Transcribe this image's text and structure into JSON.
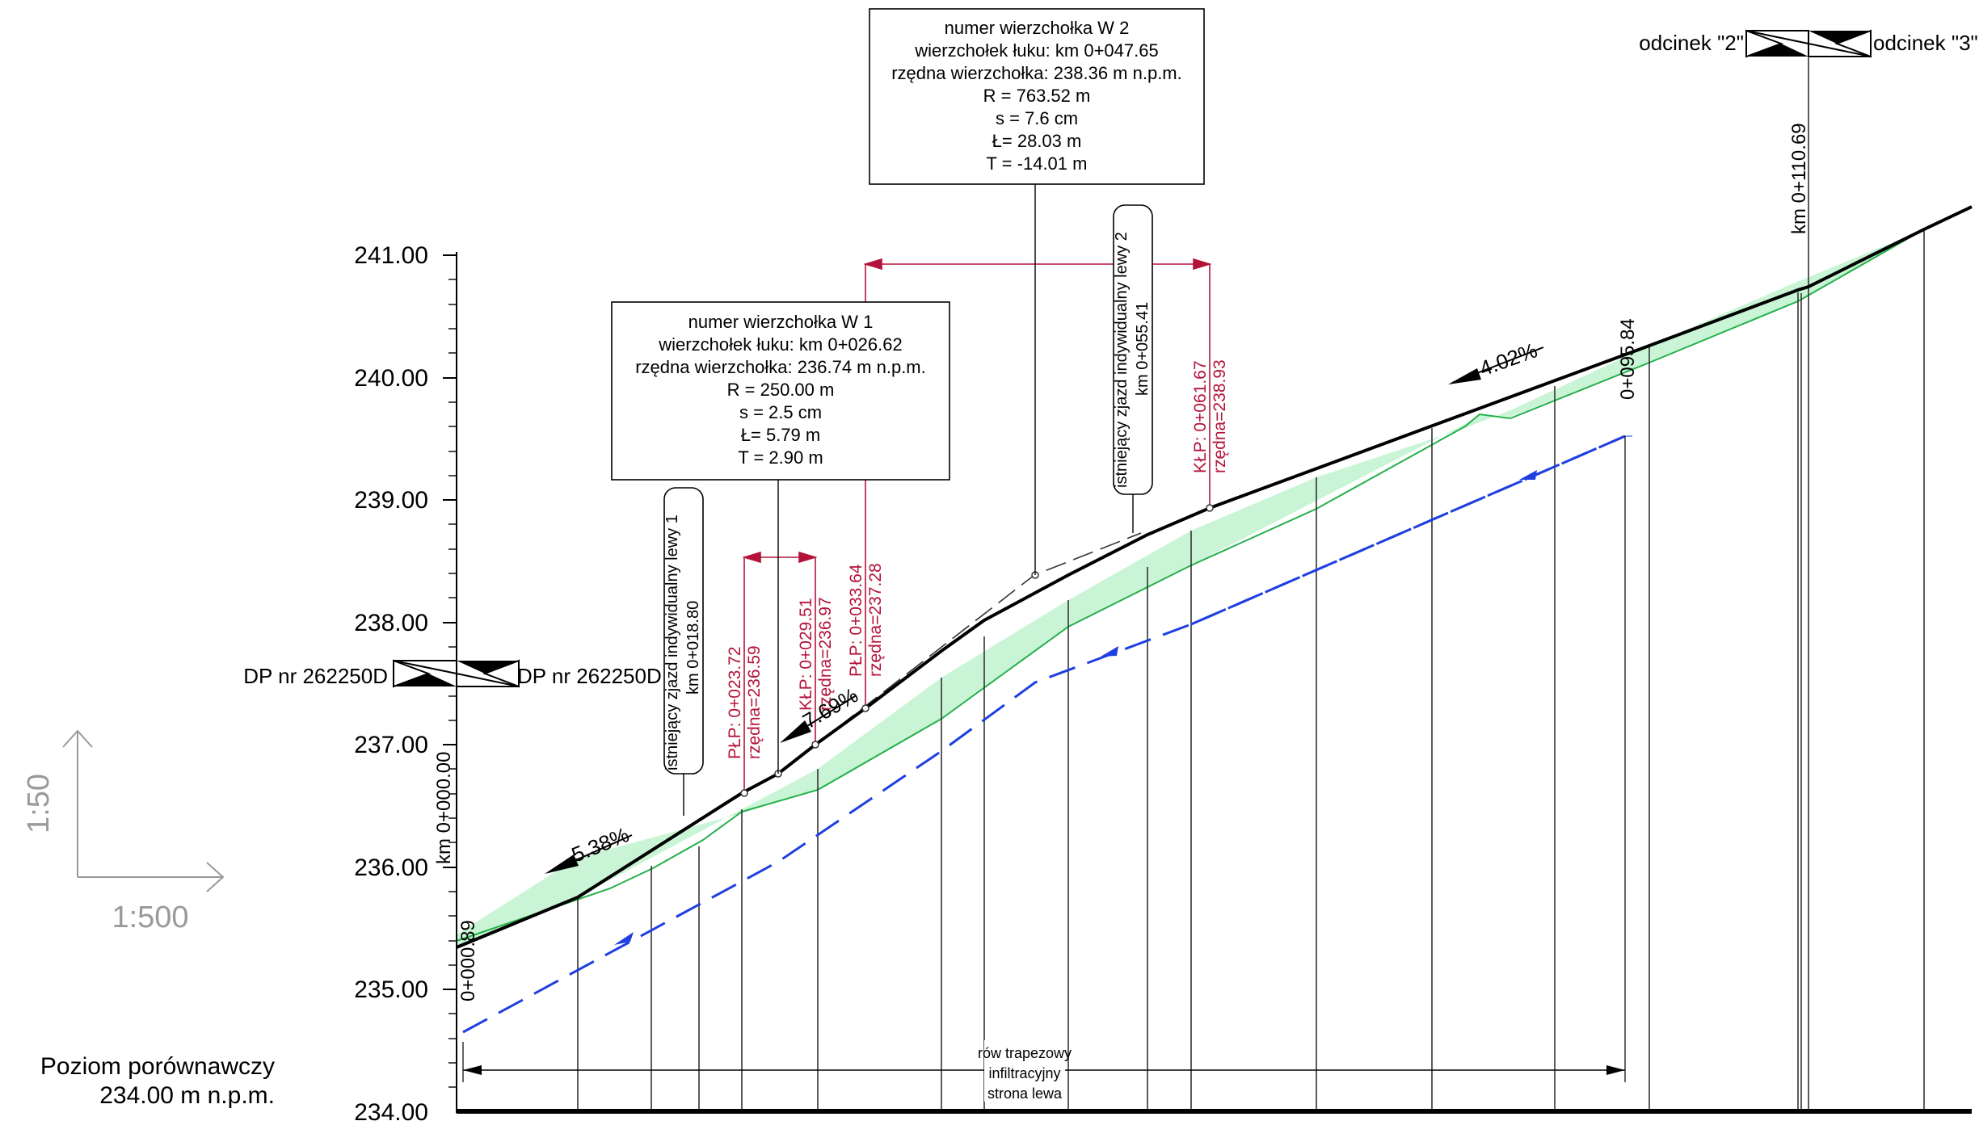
{
  "axis": {
    "ticks": [
      "241.00",
      "240.00",
      "239.00",
      "238.00",
      "237.00",
      "236.00",
      "235.00",
      "234.00"
    ],
    "datum_label_1": "Poziom porównawczy",
    "datum_label_2": "234.00 m n.p.m."
  },
  "scale": {
    "vertical": "1:50",
    "horizontal": "1:500"
  },
  "vertex_w1": {
    "lines": [
      "numer wierzchołka  W 1",
      "wierzchołek łuku: km 0+026.62",
      "rzędna wierzchołka: 236.74 m n.p.m.",
      "R = 250.00 m",
      "s = 2.5 cm",
      "Ł= 5.79 m",
      "T = 2.90 m"
    ]
  },
  "vertex_w2": {
    "lines": [
      "numer wierzchołka  W 2",
      "wierzchołek łuku: km 0+047.65",
      "rzędna wierzchołka: 238.36 m n.p.m.",
      "R = 763.52 m",
      "s = 7.6 cm",
      "Ł= 28.03 m",
      "T = -14.01 m"
    ]
  },
  "sections": {
    "left_a": "DP nr 262250D",
    "left_b": "DP nr 262250D",
    "right_a": "odcinek \"2\"",
    "right_b": "odcinek \"3\""
  },
  "chainage": {
    "start": "km 0+000.00",
    "start_low": "0+000.89",
    "end": "km 0+110.69",
    "ditch_end": "0+095.84"
  },
  "driveways": {
    "d1_line1": "istniejący zjazd indywidualny lewy 1",
    "d1_line2": "km 0+018.80",
    "d2_line1": "istniejący zjazd indywidualny lewy 2",
    "d2_line2": "km 0+055.41"
  },
  "curve_points": {
    "plp1_a": "PŁP: 0+023.72",
    "plp1_b": "rzędna=236.59",
    "klp1_a": "KŁP: 0+029.51",
    "klp1_b": "rzędna=236.97",
    "plp2_a": "PŁP: 0+033.64",
    "plp2_b": "rzędna=237.28",
    "klp2_a": "KŁP: 0+061.67",
    "klp2_b": "rzędna=238.93"
  },
  "slopes": {
    "s1": "5.38%",
    "s2": "7.69%",
    "s3": "4.02%"
  },
  "ditch": {
    "line1": "rów trapezowy",
    "line2": "infiltracyjny",
    "line3": "strona lewa"
  },
  "colors": {
    "fill": "#c9f5d6",
    "green_line": "#25b04a",
    "blue_dash": "#1f3fe0",
    "red": "#b5123a"
  }
}
